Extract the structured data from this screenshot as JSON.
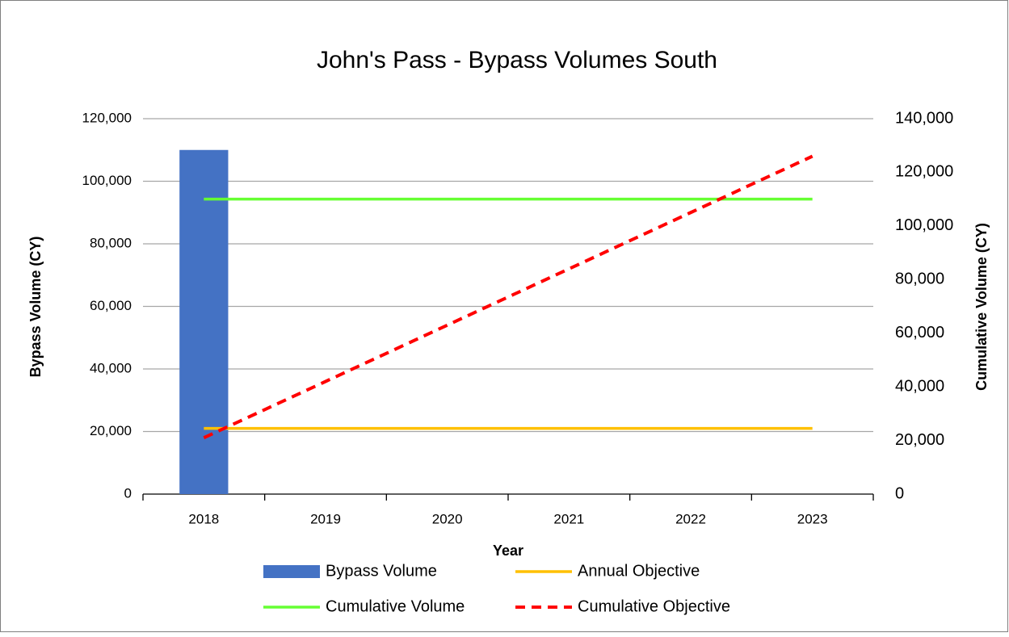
{
  "chart_data": {
    "type": "bar",
    "title": "John's Pass - Bypass Volumes South",
    "xlabel": "Year",
    "ylabel": "Bypass Volume (CY)",
    "y2label": "Cumulative Volume (CY)",
    "categories": [
      "2018",
      "2019",
      "2020",
      "2021",
      "2022",
      "2023"
    ],
    "series": [
      {
        "name": "Bypass Volume",
        "type": "bar",
        "color": "#4472c4",
        "values": [
          110000,
          null,
          null,
          null,
          null,
          null
        ]
      },
      {
        "name": "Annual Objective",
        "type": "line",
        "color": "#ffc000",
        "values": [
          21000,
          21000,
          21000,
          21000,
          21000,
          21000
        ]
      },
      {
        "name": "Cumulative Volume",
        "type": "line",
        "color": "#66ff33",
        "axis": "y2",
        "values": [
          110000,
          110000,
          110000,
          110000,
          110000,
          110000
        ]
      },
      {
        "name": "Cumulative Objective",
        "type": "line",
        "color": "#ff0000",
        "dashed": true,
        "axis": "y2",
        "values": [
          21000,
          42000,
          63000,
          84000,
          105000,
          126000
        ]
      }
    ],
    "ylim": [
      0,
      120000
    ],
    "yticks": [
      0,
      {
        "value": 20000,
        "label": "20,000"
      },
      {
        "value": 40000,
        "label": "40,000"
      },
      {
        "value": 60000,
        "label": "60,000"
      },
      {
        "value": 80000,
        "label": "80,000"
      },
      {
        "value": 100000,
        "label": "100,000"
      },
      {
        "value": 120000,
        "label": "120,000"
      }
    ],
    "y2lim": [
      0,
      140000
    ],
    "y2ticks": [
      0,
      {
        "value": 20000,
        "label": "20,000"
      },
      {
        "value": 40000,
        "label": "40,000"
      },
      {
        "value": 60000,
        "label": "60,000"
      },
      {
        "value": 80000,
        "label": "80,000"
      },
      {
        "value": 100000,
        "label": "100,000"
      },
      {
        "value": 120000,
        "label": "120,000"
      },
      {
        "value": 140000,
        "label": "140,000"
      }
    ],
    "grid": true,
    "legend": "bottom"
  }
}
